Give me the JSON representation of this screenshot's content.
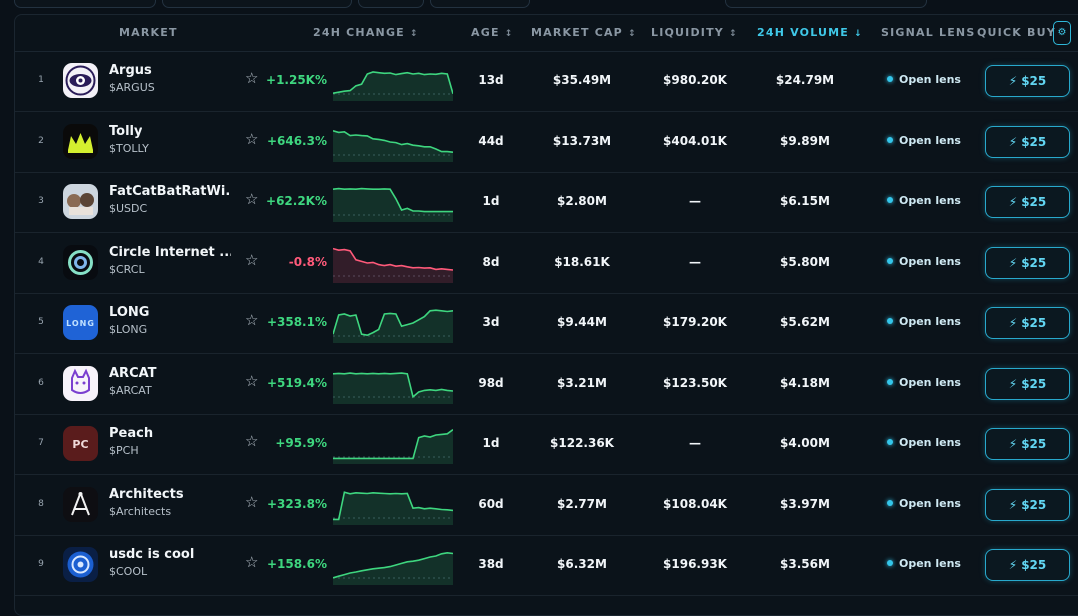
{
  "headers": {
    "market": "MARKET",
    "change": "24H CHANGE",
    "age": "AGE",
    "mcap": "MARKET CAP",
    "liquidity": "LIQUIDITY",
    "volume": "24H VOLUME",
    "signal": "SIGNAL LENS",
    "quickbuy": "QUICK BUY",
    "sort_icon": "↕",
    "active_sort_icon": "↓"
  },
  "colors": {
    "accent": "#3fc8e8",
    "positive": "#3ed67f",
    "negative": "#ff5a7a",
    "background": "#0a1118"
  },
  "rows": [
    {
      "rank": "1",
      "name": "Argus",
      "symbol": "$ARGUS",
      "change": "+1.25K%",
      "trend": "up",
      "age": "13d",
      "mcap": "$35.49M",
      "liquidity": "$980.20K",
      "volume": "$24.79M",
      "lens": "Open lens",
      "buy": "$25",
      "logo_icon": "eye-icon",
      "spark": [
        0.12,
        0.15,
        0.18,
        0.2,
        0.35,
        0.4,
        0.72,
        0.78,
        0.76,
        0.74,
        0.75,
        0.7,
        0.73,
        0.76,
        0.72,
        0.74,
        0.7,
        0.72,
        0.71,
        0.74,
        0.72,
        0.1
      ]
    },
    {
      "rank": "2",
      "name": "Tolly",
      "symbol": "$TOLLY",
      "change": "+646.3%",
      "trend": "up",
      "age": "44d",
      "mcap": "$13.73M",
      "liquidity": "$404.01K",
      "volume": "$9.89M",
      "lens": "Open lens",
      "buy": "$25",
      "logo_icon": "crown-icon",
      "spark": [
        0.85,
        0.8,
        0.82,
        0.7,
        0.72,
        0.7,
        0.69,
        0.6,
        0.58,
        0.55,
        0.5,
        0.48,
        0.42,
        0.45,
        0.4,
        0.38,
        0.35,
        0.35,
        0.28,
        0.2,
        0.2,
        0.18
      ]
    },
    {
      "rank": "3",
      "name": "FatCatBatRatWi...",
      "symbol": "$USDC",
      "change": "+62.2K%",
      "trend": "up",
      "age": "1d",
      "mcap": "$2.80M",
      "liquidity": "—",
      "volume": "$6.15M",
      "lens": "Open lens",
      "buy": "$25",
      "logo_icon": "cat-icon",
      "spark": [
        0.9,
        0.92,
        0.9,
        0.91,
        0.9,
        0.92,
        0.91,
        0.9,
        0.9,
        0.91,
        0.9,
        0.6,
        0.25,
        0.3,
        0.22,
        0.22,
        0.2,
        0.2,
        0.2,
        0.2,
        0.2,
        0.2
      ]
    },
    {
      "rank": "4",
      "name": "Circle Internet ...",
      "symbol": "$CRCL",
      "change": "-0.8%",
      "trend": "down",
      "age": "8d",
      "mcap": "$18.61K",
      "liquidity": "—",
      "volume": "$5.80M",
      "lens": "Open lens",
      "buy": "$25",
      "logo_icon": "circle-icon",
      "spark": [
        0.95,
        0.9,
        0.92,
        0.88,
        0.6,
        0.55,
        0.5,
        0.52,
        0.45,
        0.42,
        0.45,
        0.4,
        0.42,
        0.38,
        0.35,
        0.36,
        0.34,
        0.35,
        0.3,
        0.32,
        0.3,
        0.28
      ]
    },
    {
      "rank": "5",
      "name": "LONG",
      "symbol": "$LONG",
      "change": "+358.1%",
      "trend": "up",
      "age": "3d",
      "mcap": "$9.44M",
      "liquidity": "$179.20K",
      "volume": "$5.62M",
      "lens": "Open lens",
      "buy": "$25",
      "logo_icon": "long-icon",
      "spark": [
        0.15,
        0.75,
        0.78,
        0.72,
        0.75,
        0.15,
        0.12,
        0.2,
        0.3,
        0.78,
        0.8,
        0.78,
        0.4,
        0.45,
        0.5,
        0.6,
        0.7,
        0.88,
        0.9,
        0.88,
        0.86,
        0.88
      ]
    },
    {
      "rank": "6",
      "name": "ARCAT",
      "symbol": "$ARCAT",
      "change": "+519.4%",
      "trend": "up",
      "age": "98d",
      "mcap": "$3.21M",
      "liquidity": "$123.50K",
      "volume": "$4.18M",
      "lens": "Open lens",
      "buy": "$25",
      "logo_icon": "cat-face-icon",
      "spark": [
        0.82,
        0.83,
        0.82,
        0.84,
        0.82,
        0.83,
        0.82,
        0.83,
        0.82,
        0.83,
        0.82,
        0.83,
        0.84,
        0.82,
        0.1,
        0.25,
        0.3,
        0.32,
        0.3,
        0.33,
        0.3,
        0.28
      ]
    },
    {
      "rank": "7",
      "name": "Peach",
      "symbol": "$PCH",
      "change": "+95.9%",
      "trend": "up",
      "age": "1d",
      "mcap": "$122.36K",
      "liquidity": "—",
      "volume": "$4.00M",
      "lens": "Open lens",
      "buy": "$25",
      "logo_icon": "peach-icon",
      "spark": [
        0.05,
        0.05,
        0.05,
        0.05,
        0.05,
        0.05,
        0.05,
        0.05,
        0.05,
        0.05,
        0.05,
        0.05,
        0.05,
        0.05,
        0.05,
        0.7,
        0.75,
        0.72,
        0.78,
        0.8,
        0.82,
        0.95
      ]
    },
    {
      "rank": "8",
      "name": "Architects",
      "symbol": "$Architects",
      "change": "+323.8%",
      "trend": "up",
      "age": "60d",
      "mcap": "$2.77M",
      "liquidity": "$108.04K",
      "volume": "$3.97M",
      "lens": "Open lens",
      "buy": "$25",
      "logo_icon": "compass-icon",
      "spark": [
        0.05,
        0.05,
        0.9,
        0.85,
        0.88,
        0.87,
        0.86,
        0.88,
        0.87,
        0.86,
        0.85,
        0.86,
        0.85,
        0.86,
        0.4,
        0.42,
        0.38,
        0.4,
        0.38,
        0.36,
        0.35,
        0.33
      ]
    },
    {
      "rank": "9",
      "name": "usdc is cool",
      "symbol": "$COOL",
      "change": "+158.6%",
      "trend": "up",
      "age": "38d",
      "mcap": "$6.32M",
      "liquidity": "$196.93K",
      "volume": "$3.56M",
      "lens": "Open lens",
      "buy": "$25",
      "logo_icon": "usdc-coin-icon",
      "spark": [
        0.1,
        0.15,
        0.2,
        0.25,
        0.28,
        0.32,
        0.35,
        0.38,
        0.4,
        0.42,
        0.45,
        0.5,
        0.55,
        0.6,
        0.62,
        0.65,
        0.7,
        0.75,
        0.78,
        0.85,
        0.88,
        0.86
      ]
    }
  ]
}
